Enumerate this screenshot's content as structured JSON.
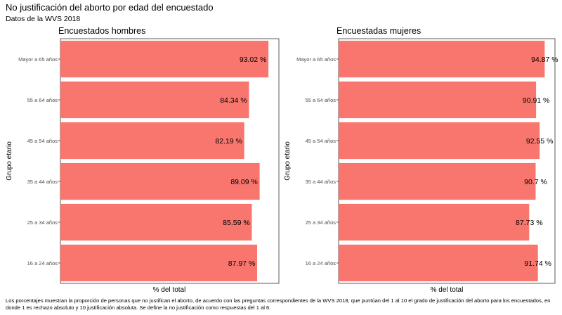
{
  "title": "No justificación del aborto por edad del encuestado",
  "subtitle": "Datos de la WVS 2018",
  "caption": "Los porcentajes muestran la proporción de personas que no justifican el aborto, de acuerdo con las preguntas correspondientes de la WVS 2018, que puntúan del 1 al 10 el grado de justificación del aborto para los encuestados, en donde 1 es rechazo absoluto y 10 justificación absoluta. Se define la no justificación como respuestas del 1 al 6.",
  "colors": {
    "bar": "#F8766D",
    "frame": "#333333"
  },
  "chart_data": [
    {
      "type": "bar",
      "orientation": "horizontal",
      "title": "Encuestados hombres",
      "xlabel": "% del total",
      "ylabel": "Grupo etario",
      "categories": [
        "Mayor a 65 años",
        "55 a 64 años",
        "45 a 54 años",
        "35 a 44 años",
        "25 a 34 años",
        "16 a 24 años"
      ],
      "values": [
        93.02,
        84.34,
        82.19,
        89.09,
        85.59,
        87.97
      ],
      "labels": [
        "93.02 %",
        "84.34 %",
        "82.19 %",
        "89.09 %",
        "85.59 %",
        "87.97 %"
      ],
      "xlim": [
        0,
        97.7
      ],
      "grid": false
    },
    {
      "type": "bar",
      "orientation": "horizontal",
      "title": "Encuestadas mujeres",
      "xlabel": "% del total",
      "ylabel": "Grupo etario",
      "categories": [
        "Mayor a 65 años",
        "55 a 64 años",
        "45 a 54 años",
        "35 a 44 años",
        "25 a 34 años",
        "16 a 24 años"
      ],
      "values": [
        94.87,
        90.91,
        92.55,
        90.7,
        87.73,
        91.74
      ],
      "labels": [
        "94.87 %",
        "90.91 %",
        "92.55 %",
        "90.7 %",
        "87.73 %",
        "91.74 %"
      ],
      "xlim": [
        0,
        99.6
      ],
      "grid": false
    }
  ]
}
